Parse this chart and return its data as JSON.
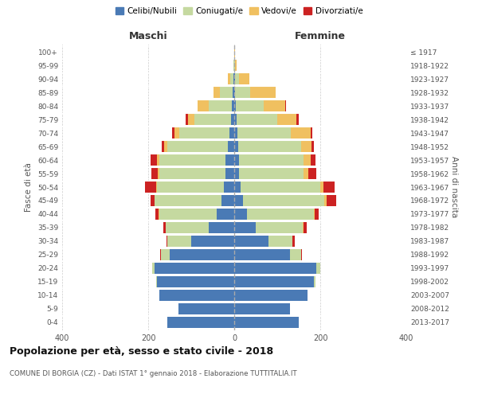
{
  "age_groups": [
    "0-4",
    "5-9",
    "10-14",
    "15-19",
    "20-24",
    "25-29",
    "30-34",
    "35-39",
    "40-44",
    "45-49",
    "50-54",
    "55-59",
    "60-64",
    "65-69",
    "70-74",
    "75-79",
    "80-84",
    "85-89",
    "90-94",
    "95-99",
    "100+"
  ],
  "birth_years": [
    "2013-2017",
    "2008-2012",
    "2003-2007",
    "1998-2002",
    "1993-1997",
    "1988-1992",
    "1983-1987",
    "1978-1982",
    "1973-1977",
    "1968-1972",
    "1963-1967",
    "1958-1962",
    "1953-1957",
    "1948-1952",
    "1943-1947",
    "1938-1942",
    "1933-1937",
    "1928-1932",
    "1923-1927",
    "1918-1922",
    "≤ 1917"
  ],
  "colors": {
    "celibe": "#4a7ab5",
    "coniugato": "#c5d9a0",
    "vedovo": "#f0c060",
    "divorziato": "#cc2222"
  },
  "males": {
    "celibe": [
      155,
      130,
      175,
      180,
      185,
      150,
      100,
      60,
      40,
      30,
      25,
      20,
      20,
      15,
      12,
      8,
      5,
      3,
      1,
      0,
      0
    ],
    "coniugato": [
      0,
      0,
      0,
      2,
      5,
      20,
      55,
      100,
      135,
      155,
      155,
      155,
      155,
      140,
      115,
      85,
      55,
      30,
      8,
      2,
      0
    ],
    "vedovo": [
      0,
      0,
      0,
      0,
      0,
      0,
      0,
      0,
      1,
      1,
      2,
      3,
      5,
      8,
      12,
      15,
      25,
      15,
      5,
      0,
      0
    ],
    "divorziato": [
      0,
      0,
      0,
      0,
      0,
      2,
      3,
      5,
      8,
      8,
      25,
      15,
      15,
      5,
      5,
      5,
      0,
      0,
      0,
      0,
      0
    ]
  },
  "females": {
    "nubile": [
      150,
      130,
      170,
      185,
      190,
      130,
      80,
      50,
      30,
      20,
      15,
      12,
      12,
      10,
      7,
      5,
      3,
      2,
      1,
      0,
      0
    ],
    "coniugata": [
      0,
      0,
      0,
      3,
      10,
      25,
      55,
      110,
      155,
      190,
      185,
      150,
      150,
      145,
      125,
      95,
      65,
      35,
      10,
      2,
      0
    ],
    "vedova": [
      0,
      0,
      0,
      0,
      0,
      0,
      0,
      1,
      2,
      5,
      8,
      10,
      15,
      25,
      45,
      45,
      50,
      60,
      25,
      3,
      1
    ],
    "divorziata": [
      0,
      0,
      0,
      0,
      0,
      2,
      5,
      8,
      10,
      22,
      25,
      18,
      12,
      5,
      5,
      5,
      2,
      0,
      0,
      0,
      0
    ]
  },
  "xlim": 400,
  "title": "Popolazione per età, sesso e stato civile - 2018",
  "subtitle": "COMUNE DI BORGIA (CZ) - Dati ISTAT 1° gennaio 2018 - Elaborazione TUTTITALIA.IT",
  "ylabel_left": "Fasce di età",
  "ylabel_right": "Anni di nascita",
  "xlabel_left": "Maschi",
  "xlabel_right": "Femmine",
  "background_color": "#ffffff",
  "grid_color": "#cccccc"
}
